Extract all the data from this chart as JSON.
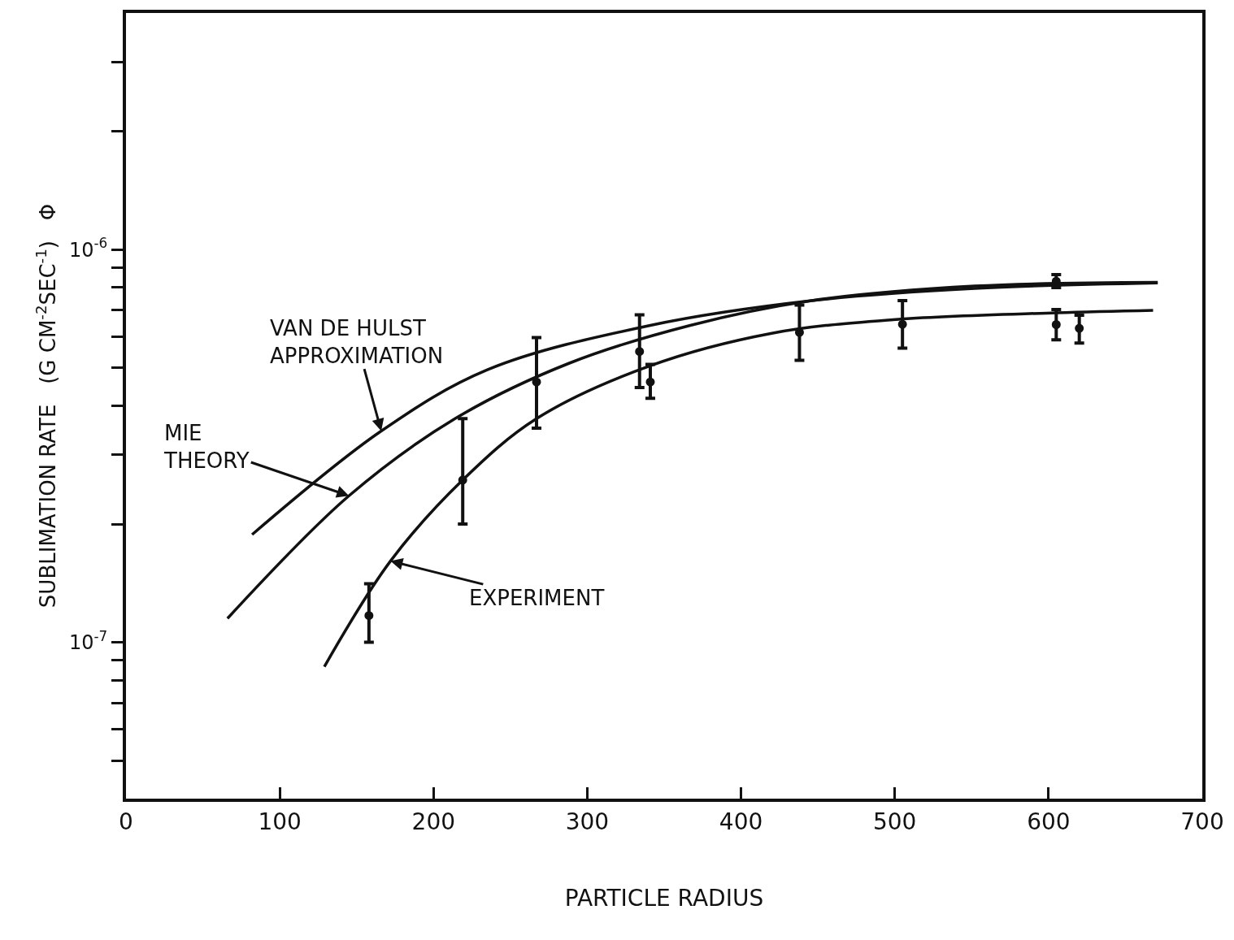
{
  "chart_data": {
    "type": "line",
    "xlabel": "PARTICLE RADIUS",
    "ylabel": "SUBLIMATION RATE   (G CM$^{-2}$SEC$^{-1}$)   Φ",
    "log": "y",
    "legend": false,
    "line_style": "solid",
    "xlim": [
      0,
      700
    ],
    "xticks": [
      0,
      100,
      200,
      300,
      400,
      500,
      600,
      700
    ],
    "ylim": [
      4e-08,
      4e-06
    ],
    "yticks": [
      {
        "value": 5e-08,
        "label": null
      },
      {
        "value": 6e-08,
        "label": null
      },
      {
        "value": 7e-08,
        "label": null
      },
      {
        "value": 8e-08,
        "label": null
      },
      {
        "value": 9e-08,
        "label": null
      },
      {
        "value": 1e-07,
        "label": "10$^{-7}$"
      },
      {
        "value": 2e-07,
        "label": null
      },
      {
        "value": 3e-07,
        "label": null
      },
      {
        "value": 4e-07,
        "label": null
      },
      {
        "value": 5e-07,
        "label": null
      },
      {
        "value": 6e-07,
        "label": null
      },
      {
        "value": 7e-07,
        "label": null
      },
      {
        "value": 8e-07,
        "label": null
      },
      {
        "value": 9e-07,
        "label": null
      },
      {
        "value": 1e-06,
        "label": "10$^{-6}$"
      },
      {
        "value": 2e-06,
        "label": null
      },
      {
        "value": 3e-06,
        "label": null
      }
    ],
    "series": [
      {
        "color": "#111111",
        "x": [
          82,
          166,
          235,
          341,
          446,
          552,
          671
        ],
        "values": [
          1.88e-07,
          3.45e-07,
          4.94e-07,
          6.41e-07,
          7.41e-07,
          7.96e-07,
          8.22e-07
        ]
      },
      {
        "color": "#111111",
        "x": [
          66,
          145,
          214,
          288,
          367,
          446,
          552,
          671
        ],
        "values": [
          1.15e-07,
          2.36e-07,
          3.71e-07,
          5.13e-07,
          6.41e-07,
          7.41e-07,
          8.07e-07,
          8.25e-07
        ]
      },
      {
        "color": "#111111",
        "x": [
          129,
          172,
          219,
          267,
          341,
          420,
          499,
          605,
          668
        ],
        "values": [
          8.67e-08,
          1.61e-07,
          2.59e-07,
          3.71e-07,
          5.06e-07,
          6.12e-07,
          6.63e-07,
          6.9e-07,
          7e-07
        ]
      },
      {
        "type": "scatter",
        "marker": "circle",
        "color": "#111111",
        "x": [
          158,
          219,
          267,
          334,
          341,
          438,
          505,
          605,
          605,
          620
        ],
        "values": [
          1.17e-07,
          2.59e-07,
          4.6e-07,
          5.5e-07,
          4.6e-07,
          6.15e-07,
          6.45e-07,
          6.44e-07,
          8.3e-07,
          6.3e-07
        ],
        "errors": [
          [
            1e-07,
            1.41e-07
          ],
          [
            2e-07,
            3.71e-07
          ],
          [
            3.51e-07,
            5.97e-07
          ],
          [
            4.45e-07,
            6.82e-07
          ],
          [
            4.18e-07,
            5.1e-07
          ],
          [
            5.22e-07,
            7.22e-07
          ],
          [
            5.61e-07,
            7.41e-07
          ],
          [
            5.89e-07,
            7.03e-07
          ],
          [
            8e-07,
            8.63e-07
          ],
          [
            5.78e-07,
            6.8e-07
          ]
        ]
      }
    ],
    "annotations": [
      {
        "text": "VAN DE HULST\nAPPROXIMATION",
        "x": 166,
        "y": 3.45e-07
      },
      {
        "text": "MIE\nTHEORY",
        "x": 145,
        "y": 2.36e-07
      },
      {
        "text": "EXPERIMENT",
        "x": 172,
        "y": 1.61e-07
      }
    ]
  }
}
